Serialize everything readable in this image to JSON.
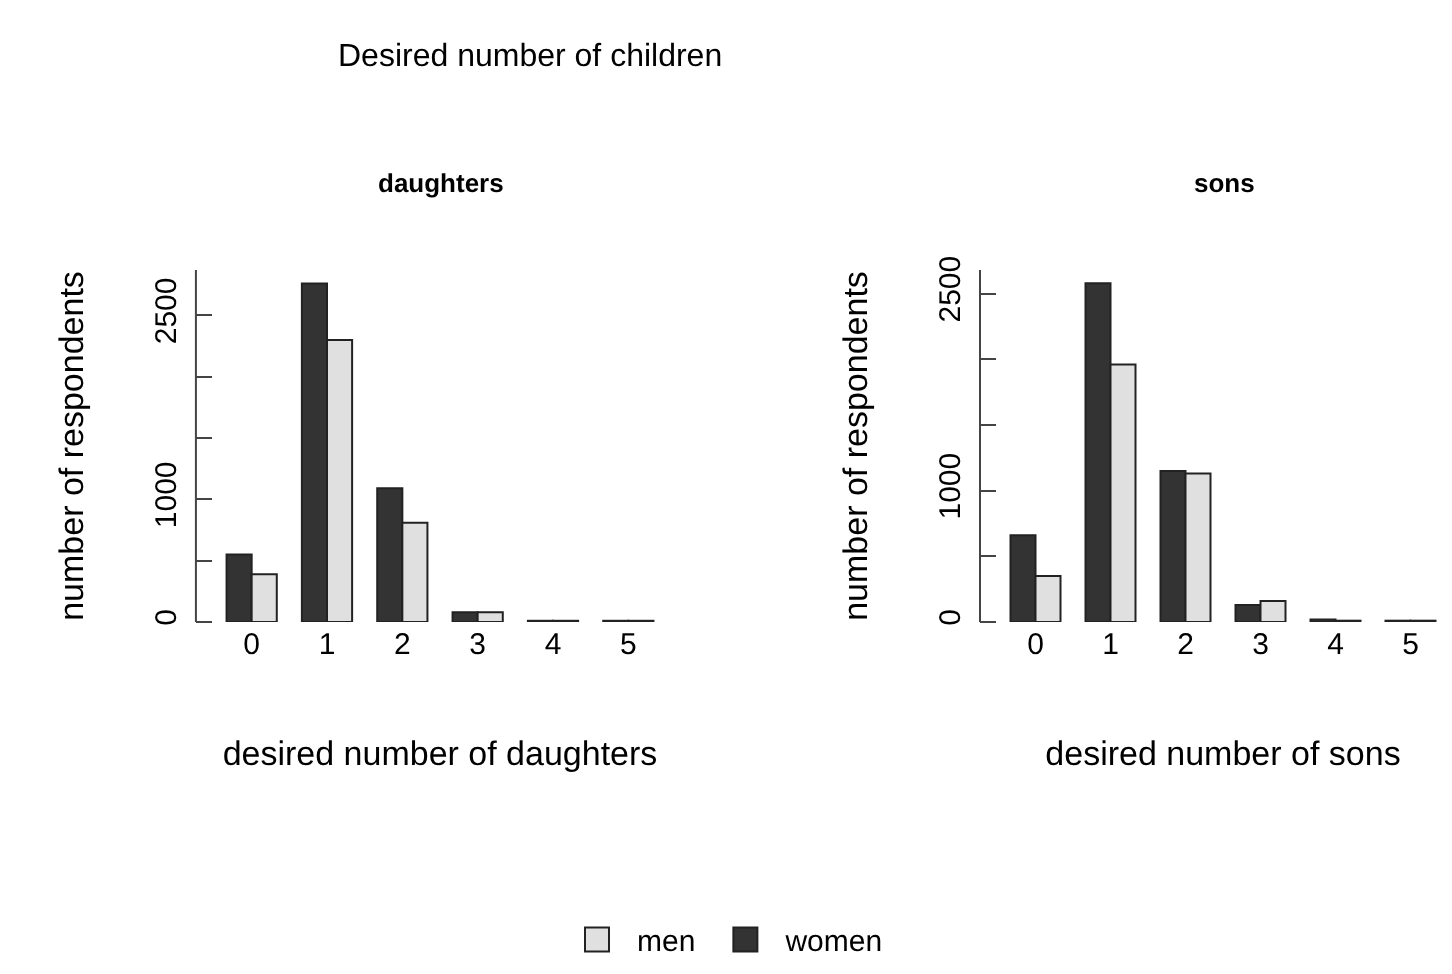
{
  "chart_data": [
    {
      "type": "bar",
      "title": "daughters",
      "annotations": [
        "Desired number of children"
      ],
      "xlabel": "desired number of daughters",
      "ylabel": "number of respondents",
      "categories": [
        "0",
        "1",
        "2",
        "3",
        "4",
        "5"
      ],
      "series": [
        {
          "name": "women",
          "color": "#333333",
          "values": [
            550,
            2760,
            1090,
            80,
            10,
            10
          ]
        },
        {
          "name": "men",
          "color": "#e0e0e0",
          "values": [
            390,
            2300,
            810,
            80,
            10,
            10
          ]
        }
      ],
      "ylim": [
        0,
        2870
      ],
      "yticks": [
        0,
        {
          "value": 500,
          "label": null
        },
        1000,
        {
          "value": 1500,
          "label": null
        },
        {
          "value": 2000,
          "label": null
        },
        2500
      ],
      "grid": false,
      "legend": "bottom"
    },
    {
      "type": "bar",
      "title": "sons",
      "xlabel": "desired number of sons",
      "ylabel": "number of respondents",
      "categories": [
        "0",
        "1",
        "2",
        "3",
        "4",
        "5"
      ],
      "series": [
        {
          "color": "#333333",
          "values": [
            660,
            2580,
            1150,
            130,
            20,
            10
          ]
        },
        {
          "color": "#e0e0e0",
          "values": [
            350,
            1960,
            1130,
            160,
            10,
            10
          ]
        }
      ],
      "ylim": [
        0,
        2680
      ],
      "yticks": [
        0,
        {
          "value": 500,
          "label": null
        },
        1000,
        {
          "value": 1500,
          "label": null
        },
        {
          "value": 2000,
          "label": null
        },
        2500
      ],
      "grid": false,
      "legend": false
    }
  ]
}
